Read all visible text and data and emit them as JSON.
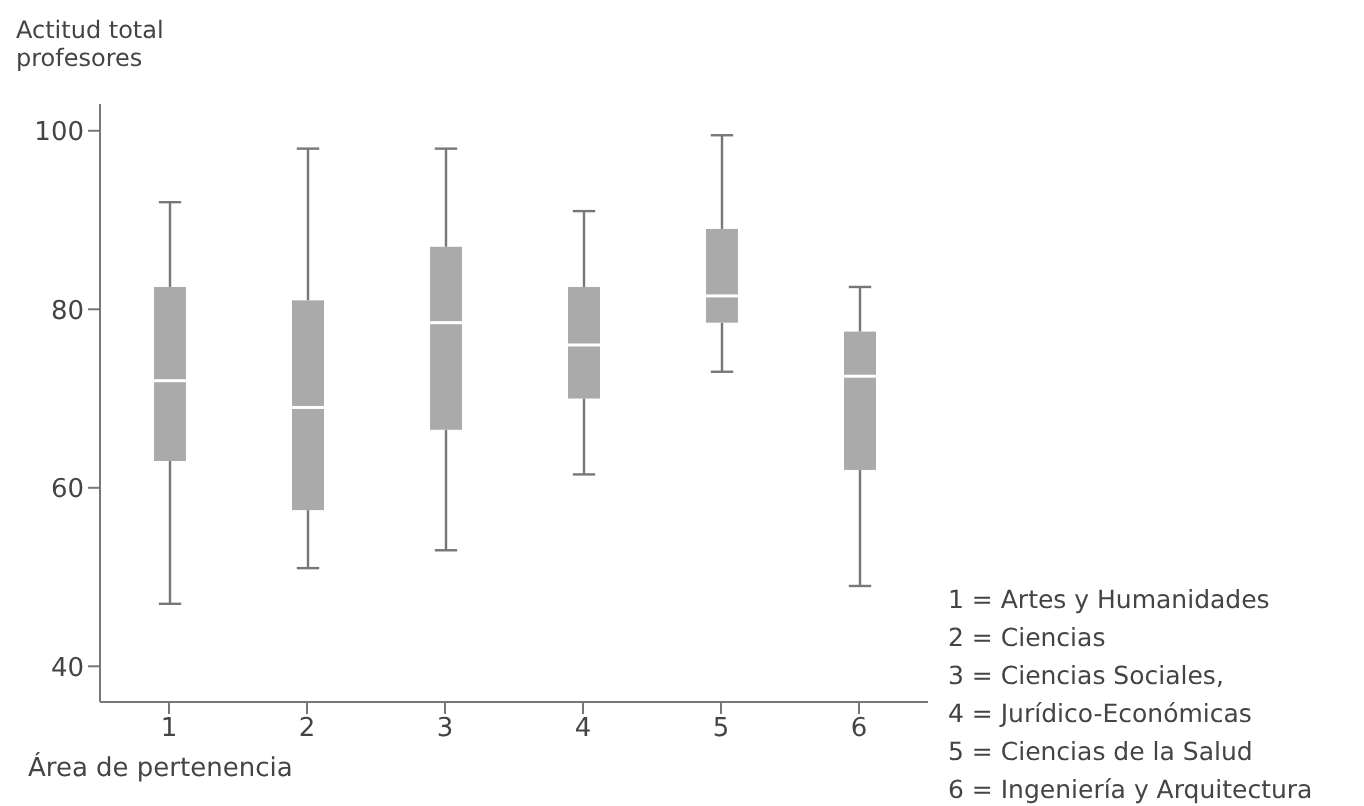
{
  "chart_data": {
    "type": "box",
    "xlabel": "Área de pertenencia",
    "ylabel": "Actitud total profesores",
    "categories": [
      "1",
      "2",
      "3",
      "4",
      "5",
      "6"
    ],
    "color": "#aaaaaa",
    "ylim": [
      36,
      103
    ],
    "yticks": [
      40,
      60,
      80,
      100
    ],
    "grid": false,
    "boxes": [
      {
        "low": 47,
        "q1": 63,
        "median": 72,
        "q3": 82.5,
        "high": 92
      },
      {
        "low": 51,
        "q1": 57.5,
        "median": 69,
        "q3": 81,
        "high": 98
      },
      {
        "low": 53,
        "q1": 66.5,
        "median": 78.5,
        "q3": 87,
        "high": 98
      },
      {
        "low": 61.5,
        "q1": 70,
        "median": 76,
        "q3": 82.5,
        "high": 91
      },
      {
        "low": 73,
        "q1": 78.5,
        "median": 81.5,
        "q3": 89,
        "high": 99.5
      },
      {
        "low": 49,
        "q1": 62,
        "median": 72.5,
        "q3": 77.5,
        "high": 82.5
      }
    ],
    "annotations": [
      "1 = Artes y Humanidades",
      "2 = Ciencias",
      "3 = Ciencias Sociales,",
      "4 = Jurídico-Económicas",
      "5 = Ciencias de la Salud",
      "6 = Ingeniería y Arquitectura"
    ]
  }
}
